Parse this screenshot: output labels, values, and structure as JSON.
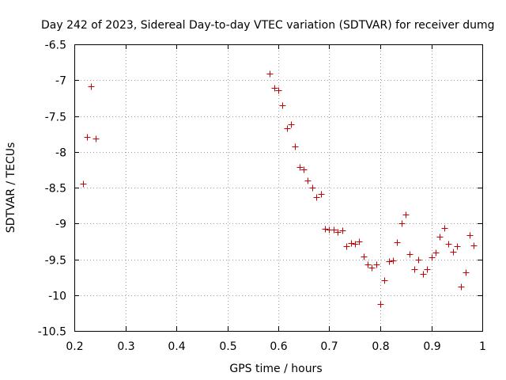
{
  "chart_data": {
    "type": "scatter",
    "title": "Day 242 of 2023, Sidereal Day-to-day VTEC variation (SDTVAR) for receiver dumg",
    "xlabel": "GPS time / hours",
    "ylabel": "SDTVAR / TECUs",
    "xlim": [
      0.2,
      1.0
    ],
    "ylim": [
      -10.5,
      -6.5
    ],
    "xticks": [
      0.2,
      0.3,
      0.4,
      0.5,
      0.6,
      0.7,
      0.8,
      0.9,
      1.0
    ],
    "xtick_labels": [
      "0.2",
      "0.3",
      "0.4",
      "0.5",
      "0.6",
      "0.7",
      "0.8",
      "0.9",
      "1"
    ],
    "yticks": [
      -10.5,
      -10,
      -9.5,
      -9,
      -8.5,
      -8,
      -7.5,
      -7,
      -6.5
    ],
    "ytick_labels": [
      "-10.5",
      "-10",
      "-9.5",
      "-9",
      "-8.5",
      "-8",
      "-7.5",
      "-7",
      "-6.5"
    ],
    "grid": true,
    "marker": "+",
    "marker_color": "#cc0000",
    "series": [
      {
        "name": "SDTVAR",
        "x": [
          0.217,
          0.225,
          0.233,
          0.242,
          0.583,
          0.592,
          0.6,
          0.608,
          0.617,
          0.625,
          0.633,
          0.642,
          0.65,
          0.658,
          0.667,
          0.675,
          0.683,
          0.692,
          0.7,
          0.708,
          0.717,
          0.725,
          0.733,
          0.742,
          0.75,
          0.758,
          0.767,
          0.775,
          0.783,
          0.792,
          0.8,
          0.808,
          0.817,
          0.825,
          0.833,
          0.842,
          0.85,
          0.858,
          0.867,
          0.875,
          0.883,
          0.892,
          0.9,
          0.908,
          0.917,
          0.925,
          0.933,
          0.942,
          0.95,
          0.958,
          0.967,
          0.975,
          0.983
        ],
        "y": [
          -8.44,
          -7.79,
          -7.09,
          -7.82,
          -6.91,
          -7.11,
          -7.14,
          -7.35,
          -7.67,
          -7.62,
          -7.92,
          -8.21,
          -8.25,
          -8.4,
          -8.5,
          -8.63,
          -8.59,
          -9.08,
          -9.09,
          -9.09,
          -9.12,
          -9.1,
          -9.32,
          -9.27,
          -9.28,
          -9.25,
          -9.46,
          -9.57,
          -9.62,
          -9.57,
          -10.12,
          -9.79,
          -9.53,
          -9.52,
          -9.26,
          -9.0,
          -8.88,
          -9.43,
          -9.64,
          -9.51,
          -9.7,
          -9.64,
          -9.47,
          -9.41,
          -9.19,
          -9.06,
          -9.29,
          -9.39,
          -9.32,
          -9.88,
          -9.68,
          -9.16,
          -9.31
        ]
      }
    ]
  }
}
